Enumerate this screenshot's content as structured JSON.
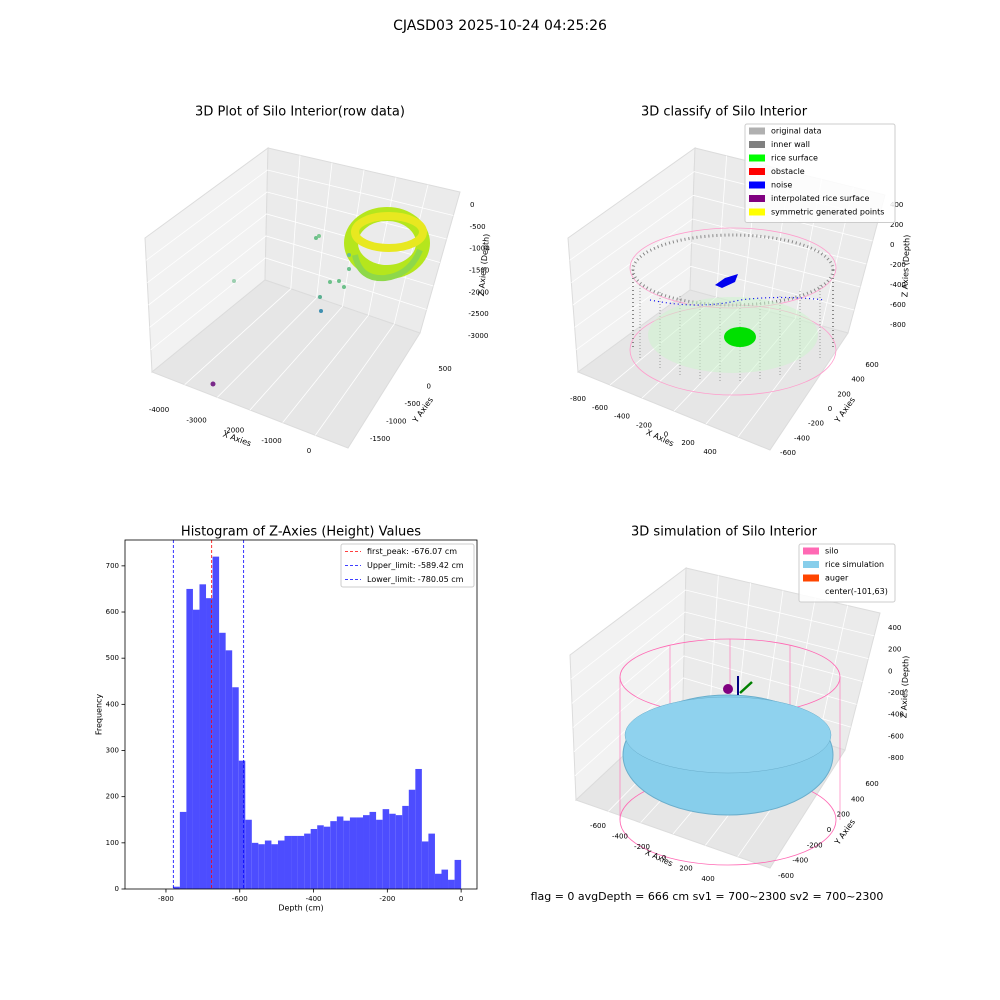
{
  "suptitle": "CJASD03 2025-10-24 04:25:26",
  "footer": "flag = 0     avgDepth = 666 cm  sv1 = 700~2300  sv2 = 700~2300",
  "chart_data": [
    {
      "type": "scatter3d",
      "title": "3D Plot of Silo Interior(row data)",
      "xlabel": "X Axies",
      "ylabel": "Y Axies",
      "zlabel": "Z Axies (Depth)",
      "xticks": [
        -4000,
        -3000,
        -2000,
        -1000,
        0
      ],
      "yticks": [
        -1500,
        -1000,
        -500,
        0,
        500
      ],
      "zticks": [
        -3000,
        -2500,
        -2000,
        -1500,
        -1000,
        -500,
        0
      ]
    },
    {
      "type": "scatter3d",
      "title": "3D classify of Silo Interior",
      "xlabel": "X Axies",
      "ylabel": "Y Axies",
      "zlabel": "Z Axies (Depth)",
      "xticks": [
        -800,
        -600,
        -400,
        -200,
        0,
        200,
        400
      ],
      "yticks": [
        -600,
        -400,
        -200,
        0,
        200,
        400,
        600
      ],
      "zticks": [
        -800,
        -600,
        -400,
        -200,
        0,
        200,
        400
      ],
      "legend": [
        {
          "name": "original data",
          "color": "#b0b0b0"
        },
        {
          "name": "inner wall",
          "color": "#808080"
        },
        {
          "name": "rice surface",
          "color": "#00ff00"
        },
        {
          "name": "obstacle",
          "color": "#ff0000"
        },
        {
          "name": "noise",
          "color": "#0000ff"
        },
        {
          "name": "interpolated rice surface",
          "color": "#800080"
        },
        {
          "name": "symmetric generated points",
          "color": "#ffff00"
        }
      ]
    },
    {
      "type": "histogram",
      "title": "Histogram of Z-Axies (Height) Values",
      "xlabel": "Depth (cm)",
      "ylabel": "Frequency",
      "color": "#4d4dff",
      "bins": [
        -780.05,
        -762.32,
        -744.6,
        -726.87,
        -709.14,
        -691.41,
        -673.69,
        -655.96,
        -638.23,
        -620.5,
        -602.78,
        -585.05,
        -567.32,
        -549.59,
        -531.87,
        -514.14,
        -496.41,
        -478.68,
        -460.96,
        -443.23,
        -425.5,
        -407.77,
        -390.05,
        -372.32,
        -354.59,
        -336.86,
        -319.14,
        -301.41,
        -283.68,
        -265.95,
        -248.23,
        -230.5,
        -212.77,
        -195.04,
        -177.32,
        -159.59,
        -141.86,
        -124.13,
        -106.41,
        -88.68,
        -70.95,
        -53.22,
        -35.5,
        -17.77,
        0
      ],
      "counts": [
        5,
        167,
        650,
        605,
        660,
        630,
        720,
        555,
        517,
        437,
        278,
        150,
        100,
        97,
        105,
        97,
        105,
        115,
        115,
        115,
        120,
        130,
        138,
        135,
        147,
        157,
        148,
        155,
        155,
        160,
        167,
        150,
        173,
        163,
        160,
        180,
        215,
        260,
        103,
        120,
        33,
        42,
        20,
        63
      ],
      "xlim": [
        -911,
        43
      ],
      "ylim": [
        0,
        756
      ],
      "xticks": [
        -800,
        -600,
        -400,
        -200,
        0
      ],
      "yticks": [
        0,
        100,
        200,
        300,
        400,
        500,
        600,
        700
      ],
      "vlines": [
        {
          "value": -676.07,
          "label": "first_peak: -676.07 cm",
          "color": "#ff0000"
        },
        {
          "value": -589.42,
          "label": "Upper_limit: -589.42 cm",
          "color": "#0000ff"
        },
        {
          "value": -780.05,
          "label": "Lower_limit: -780.05 cm",
          "color": "#0000ff"
        }
      ]
    },
    {
      "type": "surface3d",
      "title": "3D simulation of Silo Interior",
      "xlabel": "X Axies",
      "ylabel": "Y Axies",
      "zlabel": "Z Axies (Depth)",
      "xticks": [
        -600,
        -400,
        -200,
        0,
        200,
        400
      ],
      "yticks": [
        -600,
        -400,
        -200,
        0,
        200,
        400,
        600
      ],
      "zticks": [
        -800,
        -600,
        -400,
        -200,
        0,
        200,
        400
      ],
      "legend": [
        {
          "name": "silo",
          "color": "#ff69b4"
        },
        {
          "name": "rice simulation",
          "color": "#87ceeb"
        },
        {
          "name": "auger",
          "color": "#ff4500"
        },
        {
          "name": "center(-101,63)",
          "color": "#ffffff"
        }
      ]
    }
  ]
}
